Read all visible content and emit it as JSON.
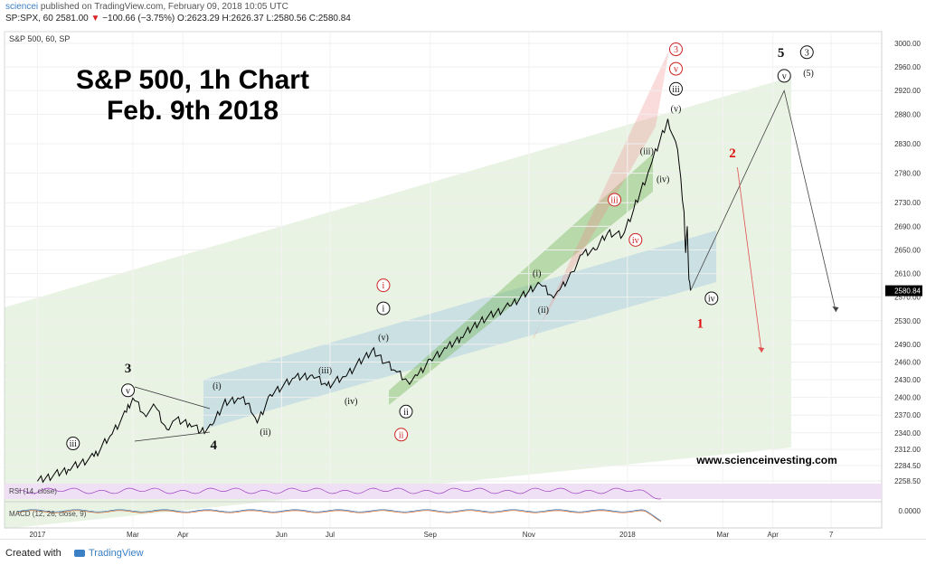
{
  "header": {
    "user": "sciencei",
    "published": " published on TradingView.com, February 09, 2018 10:05 UTC",
    "symbol_prefix": "SP:SPX, 60  2581.00 ",
    "down_arrow": "▼",
    "change": " −100.66 (−3.75%)",
    "ohlc": " O:2623.29 H:2626.37 L:2580.56 C:2580.84"
  },
  "footer": {
    "created_with": "Created with",
    "brand": "TradingView"
  },
  "chart_data": {
    "type": "line",
    "pane_label": "S&P 500, 60, SP",
    "title": "S&P 500, 1h Chart",
    "subtitle": "Feb. 9th 2018",
    "watermark": "www.scienceinvesting.com",
    "last_price": "2580.84",
    "y_ticks": [
      "3000.00",
      "2960.00",
      "2920.00",
      "2880.00",
      "2830.00",
      "2780.00",
      "2730.00",
      "2690.00",
      "2650.00",
      "2610.00",
      "2570.00",
      "2530.00",
      "2490.00",
      "2460.00",
      "2430.00",
      "2400.00",
      "2370.00",
      "2340.00",
      "2312.00",
      "2284.50",
      "2258.50"
    ],
    "x_ticks": [
      "2017",
      "Mar",
      "Apr",
      "Jun",
      "Jul",
      "Sep",
      "Nov",
      "2018",
      "Mar",
      "Apr",
      "7"
    ],
    "ylim": [
      2250,
      3010
    ],
    "price_series": {
      "name": "SPX",
      "x": [
        "2017-01-01",
        "2017-01-20",
        "2017-02-05",
        "2017-02-15",
        "2017-02-25",
        "2017-03-01",
        "2017-03-08",
        "2017-03-15",
        "2017-03-22",
        "2017-03-27",
        "2017-04-05",
        "2017-04-12",
        "2017-04-19",
        "2017-04-26",
        "2017-05-05",
        "2017-05-12",
        "2017-05-17",
        "2017-05-25",
        "2017-06-09",
        "2017-06-20",
        "2017-06-29",
        "2017-07-10",
        "2017-07-27",
        "2017-08-10",
        "2017-08-18",
        "2017-08-24",
        "2017-09-01",
        "2017-09-11",
        "2017-09-20",
        "2017-10-02",
        "2017-10-20",
        "2017-11-01",
        "2017-11-08",
        "2017-11-15",
        "2017-11-20",
        "2017-11-28",
        "2017-12-04",
        "2017-12-12",
        "2017-12-20",
        "2017-12-29",
        "2018-01-05",
        "2018-01-15",
        "2018-01-26",
        "2018-02-01",
        "2018-02-05",
        "2018-02-06",
        "2018-02-07",
        "2018-02-08",
        "2018-02-09"
      ],
      "y": [
        2258,
        2278,
        2300,
        2335,
        2375,
        2399,
        2372,
        2384,
        2346,
        2362,
        2356,
        2342,
        2353,
        2389,
        2399,
        2390,
        2357,
        2405,
        2433,
        2438,
        2420,
        2435,
        2480,
        2446,
        2427,
        2437,
        2465,
        2483,
        2502,
        2530,
        2555,
        2580,
        2592,
        2573,
        2582,
        2613,
        2642,
        2650,
        2680,
        2674,
        2720,
        2790,
        2872,
        2820,
        2715,
        2645,
        2690,
        2600,
        2581
      ]
    },
    "projections": [
      {
        "name": "path-black",
        "points": [
          [
            "2018-02-09",
            2581
          ],
          [
            "2018-04-08",
            2920
          ],
          [
            "2018-05-10",
            2545
          ]
        ]
      },
      {
        "name": "path-red",
        "points": [
          [
            "2018-03-10",
            2790
          ],
          [
            "2018-03-25",
            2476
          ]
        ]
      }
    ],
    "wave_labels": [
      {
        "text": "iii",
        "style": "circle",
        "color": "#111111",
        "x": "2017-01-23",
        "y": 2322
      },
      {
        "text": "v",
        "style": "circle",
        "color": "#111111",
        "x": "2017-02-26",
        "y": 2412
      },
      {
        "text": "3",
        "style": "plain",
        "color": "#111111",
        "x": "2017-02-26",
        "y": 2450
      },
      {
        "text": "4",
        "style": "plain",
        "color": "#111111",
        "x": "2017-04-20",
        "y": 2320
      },
      {
        "text": "(i)",
        "style": "plain",
        "color": "#111111",
        "x": "2017-04-22",
        "y": 2420
      },
      {
        "text": "(ii)",
        "style": "plain",
        "color": "#111111",
        "x": "2017-05-22",
        "y": 2342
      },
      {
        "text": "(iii)",
        "style": "plain",
        "color": "#111111",
        "x": "2017-06-28",
        "y": 2446
      },
      {
        "text": "(iv)",
        "style": "plain",
        "color": "#111111",
        "x": "2017-07-14",
        "y": 2394
      },
      {
        "text": "(v)",
        "style": "plain",
        "color": "#111111",
        "x": "2017-08-03",
        "y": 2502
      },
      {
        "text": "i",
        "style": "circle",
        "color": "#111111",
        "x": "2017-08-03",
        "y": 2551
      },
      {
        "text": "i",
        "style": "circle",
        "color": "#cc2222",
        "x": "2017-08-03",
        "y": 2590
      },
      {
        "text": "ii",
        "style": "circle",
        "color": "#111111",
        "x": "2017-08-17",
        "y": 2376
      },
      {
        "text": "ii",
        "style": "circle",
        "color": "#cc2222",
        "x": "2017-08-14",
        "y": 2337
      },
      {
        "text": "(i)",
        "style": "plain",
        "color": "#111111",
        "x": "2017-11-06",
        "y": 2611
      },
      {
        "text": "(ii)",
        "style": "plain",
        "color": "#111111",
        "x": "2017-11-10",
        "y": 2549
      },
      {
        "text": "iii",
        "style": "circle",
        "color": "#cc2222",
        "x": "2017-12-24",
        "y": 2735
      },
      {
        "text": "iv",
        "style": "circle",
        "color": "#cc2222",
        "x": "2018-01-06",
        "y": 2667
      },
      {
        "text": "(iii)",
        "style": "plain",
        "color": "#111111",
        "x": "2018-01-13",
        "y": 2818
      },
      {
        "text": "(iv)",
        "style": "plain",
        "color": "#111111",
        "x": "2018-01-23",
        "y": 2770
      },
      {
        "text": "(v)",
        "style": "plain",
        "color": "#111111",
        "x": "2018-01-31",
        "y": 2890
      },
      {
        "text": "iii",
        "style": "circle",
        "color": "#111111",
        "x": "2018-01-31",
        "y": 2923
      },
      {
        "text": "v",
        "style": "circle",
        "color": "#cc2222",
        "x": "2018-01-31",
        "y": 2957
      },
      {
        "text": "3",
        "style": "circle",
        "color": "#cc2222",
        "x": "2018-01-31",
        "y": 2990
      },
      {
        "text": "iv",
        "style": "circle",
        "color": "#111111",
        "x": "2018-02-22",
        "y": 2568
      },
      {
        "text": "1",
        "style": "plain",
        "color": "#dd1111",
        "x": "2018-02-15",
        "y": 2526
      },
      {
        "text": "2",
        "style": "plain",
        "color": "#dd1111",
        "x": "2018-03-07",
        "y": 2815
      },
      {
        "text": "5",
        "style": "plain",
        "color": "#111111",
        "x": "2018-04-06",
        "y": 2985
      },
      {
        "text": "3",
        "style": "circle",
        "color": "#111111",
        "x": "2018-04-22",
        "y": 2985
      },
      {
        "text": "v",
        "style": "circle",
        "color": "#111111",
        "x": "2018-04-08",
        "y": 2945
      },
      {
        "text": "(5)",
        "style": "plain",
        "color": "#111111",
        "x": "2018-04-23",
        "y": 2950
      }
    ],
    "colors": {
      "price": "#000000",
      "up_label": "#ffffff",
      "price_badge": "#000000",
      "red": "#cc2222"
    }
  },
  "indicators": {
    "rsi": {
      "label": "RSI (14, close)"
    },
    "macd": {
      "label": "MACD (12, 26, close, 9)",
      "value": "0.0000"
    }
  }
}
